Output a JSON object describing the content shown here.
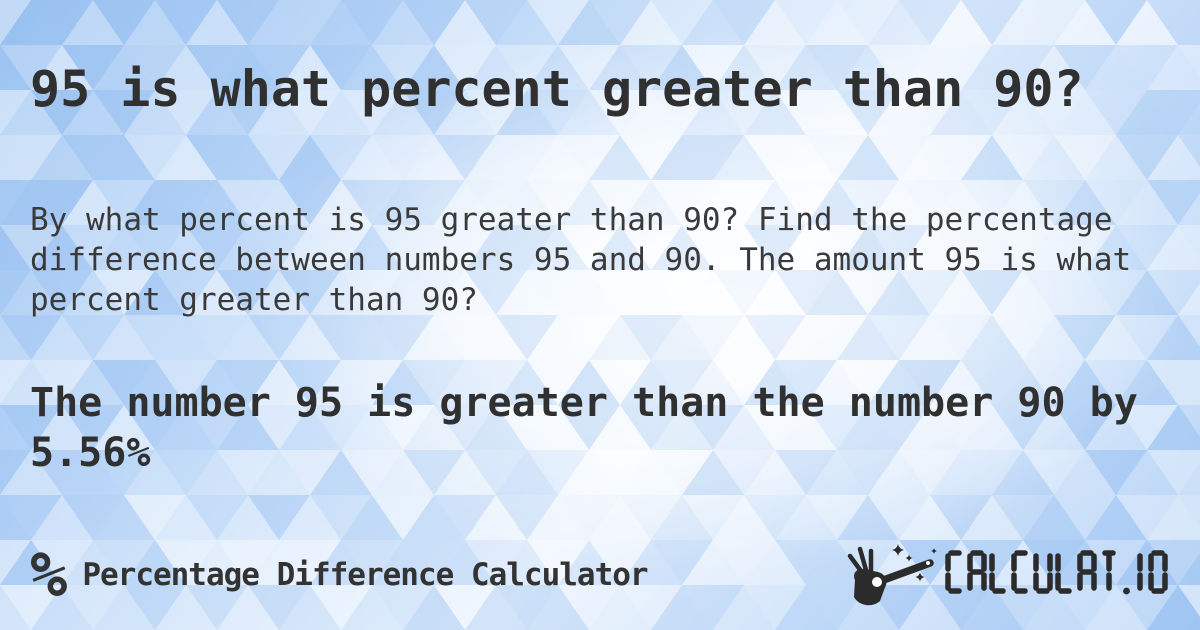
{
  "page": {
    "title": "95 is what percent greater than 90?",
    "description": "By what percent is 95 greater than 90? Find the percentage difference between numbers 95 and 90. The amount 95 is what percent greater than 90?",
    "answer": "The number 95 is greater than the number 90 by 5.56%"
  },
  "footer": {
    "percent_glyph": "%",
    "site_name": "Percentage Difference Calculator",
    "brand": {
      "icon": "magic-wand-hand-icon",
      "name": "CALCULAT.IO"
    }
  },
  "colors": {
    "text_dark": "#303030",
    "text_body": "#3a3a3a",
    "logo_dark": "#2b2b2b",
    "background_base": [
      "#9cc3f1",
      "#b7d4f7",
      "#d8e8fb",
      "#e9f2fd",
      "#c6ddf9",
      "#a5c9f4"
    ],
    "triangle_blue": "#8cb9ef",
    "triangle_white": "#ffffff"
  }
}
